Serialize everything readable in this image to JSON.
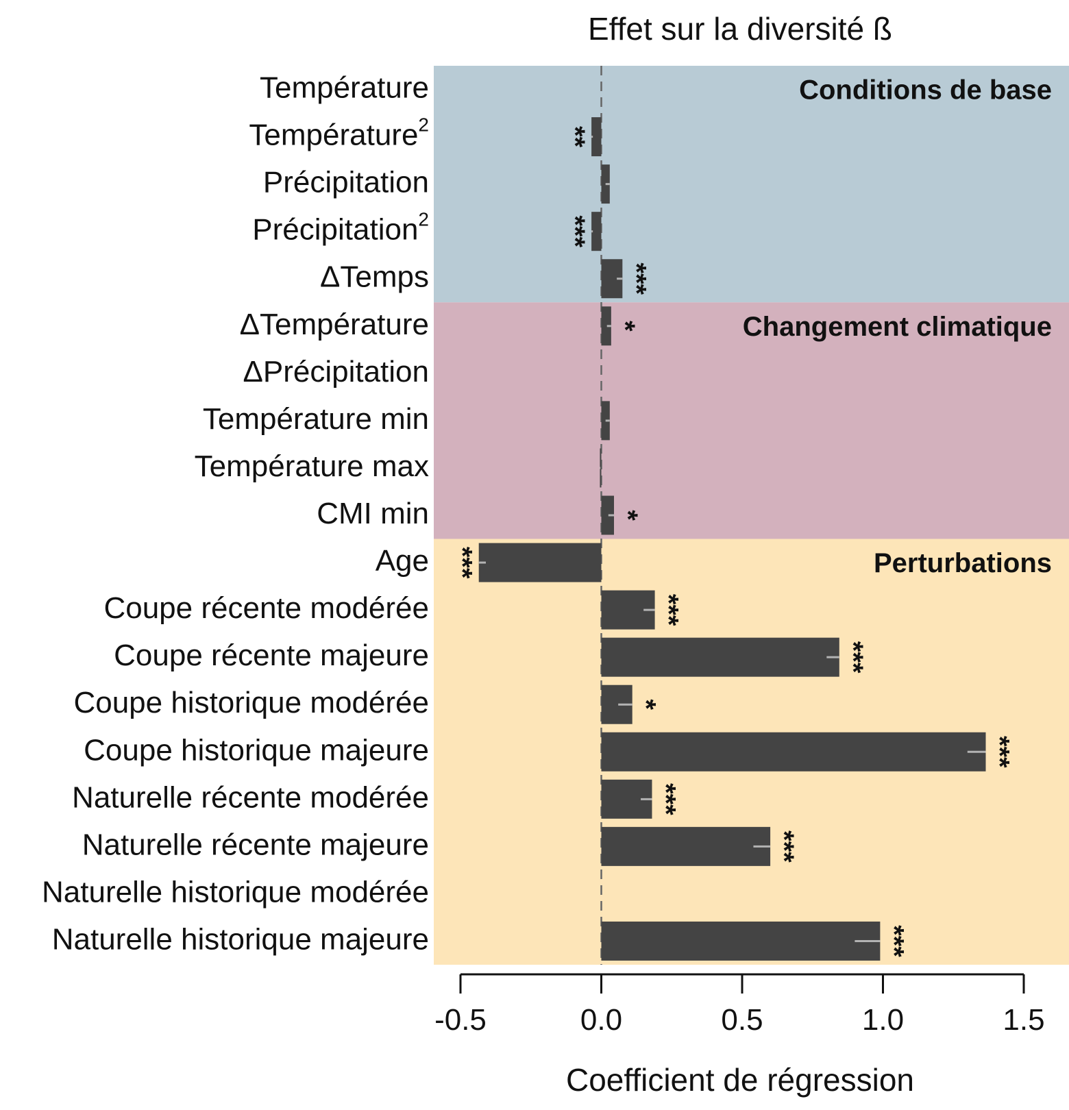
{
  "chart_data": {
    "type": "bar",
    "orientation": "horizontal",
    "title": "Effet sur la diversité ß",
    "xlabel": "Coefficient de régression",
    "xlim": [
      -0.5,
      1.5
    ],
    "xticks": [
      "-0.5",
      "0.0",
      "0.5",
      "1.0",
      "1.5"
    ],
    "reference_line": 0,
    "sections": [
      {
        "name": "Conditions de base",
        "color": "#b8cbd5",
        "start": 0,
        "count": 5
      },
      {
        "name": "Changement climatique",
        "color": "#d3b1bd",
        "start": 5,
        "count": 5
      },
      {
        "name": "Perturbations",
        "color": "#fde5b8",
        "start": 10,
        "count": 9
      }
    ],
    "categories": [
      {
        "label": "Température",
        "sup": ""
      },
      {
        "label": "Température",
        "sup": "2"
      },
      {
        "label": "Précipitation",
        "sup": ""
      },
      {
        "label": "Précipitation",
        "sup": "2"
      },
      {
        "label": "ΔTemps",
        "sup": ""
      },
      {
        "label": "ΔTempérature",
        "sup": ""
      },
      {
        "label": "ΔPrécipitation",
        "sup": ""
      },
      {
        "label": "Température min",
        "sup": ""
      },
      {
        "label": "Température max",
        "sup": ""
      },
      {
        "label": "CMI min",
        "sup": ""
      },
      {
        "label": "Age",
        "sup": ""
      },
      {
        "label": "Coupe récente modérée",
        "sup": ""
      },
      {
        "label": "Coupe récente majeure",
        "sup": ""
      },
      {
        "label": "Coupe historique modérée",
        "sup": ""
      },
      {
        "label": "Coupe historique majeure",
        "sup": ""
      },
      {
        "label": "Naturelle récente modérée",
        "sup": ""
      },
      {
        "label": "Naturelle récente majeure",
        "sup": ""
      },
      {
        "label": "Naturelle historique modérée",
        "sup": ""
      },
      {
        "label": "Naturelle historique majeure",
        "sup": ""
      }
    ],
    "values": [
      0.0,
      -0.035,
      0.03,
      -0.035,
      0.075,
      0.035,
      0.0,
      0.03,
      -0.005,
      0.045,
      -0.435,
      0.19,
      0.845,
      0.11,
      1.365,
      0.18,
      0.6,
      0.0,
      0.99
    ],
    "error_low": [
      0.0,
      -0.03,
      0.015,
      -0.03,
      0.055,
      0.02,
      0.0,
      0.015,
      -0.003,
      0.025,
      -0.41,
      0.15,
      0.8,
      0.06,
      1.3,
      0.14,
      0.54,
      0.0,
      0.9
    ],
    "significance": [
      "",
      "**",
      "",
      "***",
      "***",
      "*",
      "",
      "",
      "",
      "*",
      "***",
      "***",
      "***",
      "*",
      "***",
      "***",
      "***",
      "",
      "***"
    ],
    "bar_color": "#444444",
    "error_color": "#b3b3b3"
  }
}
